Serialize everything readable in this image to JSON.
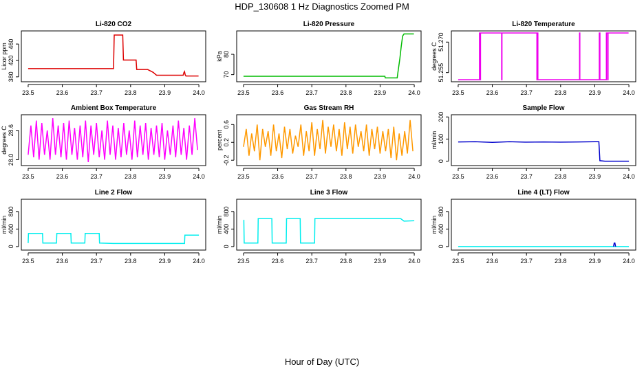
{
  "figure": {
    "title": "HDP_130608  1 Hz Diagnostics Zoomed PM",
    "xlabel": "Hour of Day (UTC)"
  },
  "chart_data": [
    {
      "id": "co2",
      "type": "line",
      "title": "Li-820 CO2",
      "ylabel": "Licor ppm",
      "color": "#dd0000",
      "xlim": [
        23.48,
        24.02
      ],
      "ylim": [
        368,
        492
      ],
      "x_ticks": [
        23.5,
        23.6,
        23.7,
        23.8,
        23.9,
        24.0
      ],
      "x_tick_labels": [
        "23.5",
        "23.6",
        "23.7",
        "23.8",
        "23.9",
        "24.0"
      ],
      "y_ticks": [
        380,
        420,
        460
      ],
      "y_tick_labels": [
        "380",
        "420",
        "460"
      ],
      "series": [
        {
          "x": [
            23.5,
            23.75,
            23.752,
            23.777,
            23.779,
            23.816,
            23.818,
            23.85,
            23.852,
            23.866,
            23.876,
            23.878,
            23.954,
            23.956,
            23.958,
            23.96,
            23.962,
            23.999
          ],
          "y": [
            400,
            400,
            482,
            482,
            421,
            421,
            398,
            398,
            397,
            391,
            384,
            384,
            384,
            390,
            393,
            385,
            382,
            382
          ]
        }
      ]
    },
    {
      "id": "pressure",
      "type": "line",
      "title": "Li-820 Pressure",
      "ylabel": "kPa",
      "color": "#00bb00",
      "xlim": [
        23.48,
        24.02
      ],
      "ylim": [
        66.5,
        91.5
      ],
      "x_ticks": [
        23.5,
        23.6,
        23.7,
        23.8,
        23.9,
        24.0
      ],
      "x_tick_labels": [
        "23.5",
        "23.6",
        "23.7",
        "23.8",
        "23.9",
        "24.0"
      ],
      "y_ticks": [
        70,
        80
      ],
      "y_tick_labels": [
        "70",
        "80"
      ],
      "series": [
        {
          "x": [
            23.5,
            23.914,
            23.915,
            23.95,
            23.952,
            23.958,
            23.962,
            23.966,
            23.97,
            23.999
          ],
          "y": [
            69.2,
            69.2,
            68.4,
            68.4,
            71,
            78,
            84,
            89,
            90,
            90
          ]
        }
      ]
    },
    {
      "id": "licor_temp",
      "type": "line",
      "title": "Li-820 Temperature",
      "ylabel": "degrees C",
      "color": "#ee00ee",
      "xlim": [
        23.48,
        24.02
      ],
      "ylim": [
        51.2505,
        51.2755
      ],
      "x_ticks": [
        23.5,
        23.6,
        23.7,
        23.8,
        23.9,
        24.0
      ],
      "x_tick_labels": [
        "23.5",
        "23.6",
        "23.7",
        "23.8",
        "23.9",
        "24.0"
      ],
      "y_ticks": [
        51.255,
        51.27
      ],
      "y_tick_labels": [
        "51.255",
        "51.270"
      ],
      "series": [
        {
          "x": [
            23.5,
            23.5625,
            23.5625,
            23.5635,
            23.5635,
            23.5655,
            23.5655,
            23.6273,
            23.6273,
            23.6283,
            23.6283,
            23.7305,
            23.7305,
            23.7315,
            23.7315,
            23.7335,
            23.7335,
            23.8553,
            23.8553,
            23.8563,
            23.8563,
            23.9133,
            23.9133,
            23.9153,
            23.9153,
            23.9339,
            23.9339,
            23.9375,
            23.9375,
            23.939,
            23.939,
            23.999
          ],
          "y": [
            51.2515,
            51.2515,
            51.2745,
            51.2745,
            51.2515,
            51.2515,
            51.2745,
            51.2745,
            51.2515,
            51.2515,
            51.2745,
            51.2745,
            51.2515,
            51.2515,
            51.2745,
            51.2745,
            51.2515,
            51.2515,
            51.2745,
            51.2745,
            51.2515,
            51.2515,
            51.2745,
            51.2745,
            51.2515,
            51.2515,
            51.2745,
            51.2745,
            51.2515,
            51.2515,
            51.2745,
            51.2745
          ]
        }
      ]
    },
    {
      "id": "box_temp",
      "type": "line",
      "title": "Ambient Box Temperature",
      "ylabel": "degrees C",
      "color": "#ff00ff",
      "xlim": [
        23.48,
        24.02
      ],
      "ylim": [
        27.88,
        28.92
      ],
      "x_ticks": [
        23.5,
        23.6,
        23.7,
        23.8,
        23.9,
        24.0
      ],
      "x_tick_labels": [
        "23.5",
        "23.6",
        "23.7",
        "23.8",
        "23.9",
        "24.0"
      ],
      "y_ticks": [
        28.0,
        28.6
      ],
      "y_tick_labels": [
        "28.0",
        "28.6"
      ],
      "series": [
        {
          "x": [
            23.5,
            23.508,
            23.516,
            23.524,
            23.532,
            23.54,
            23.548,
            23.556,
            23.564,
            23.572,
            23.58,
            23.588,
            23.596,
            23.604,
            23.612,
            23.62,
            23.628,
            23.636,
            23.644,
            23.652,
            23.66,
            23.668,
            23.676,
            23.684,
            23.692,
            23.7,
            23.708,
            23.716,
            23.724,
            23.732,
            23.74,
            23.748,
            23.756,
            23.764,
            23.772,
            23.78,
            23.788,
            23.796,
            23.804,
            23.812,
            23.82,
            23.828,
            23.836,
            23.844,
            23.852,
            23.86,
            23.868,
            23.876,
            23.884,
            23.892,
            23.9,
            23.908,
            23.916,
            23.924,
            23.932,
            23.94,
            23.948,
            23.956,
            23.964,
            23.972,
            23.98,
            23.988,
            23.996
          ],
          "y": [
            28.1,
            28.7,
            28.05,
            28.8,
            28.0,
            28.75,
            28.1,
            28.6,
            28.0,
            28.85,
            28.1,
            28.7,
            28.05,
            28.75,
            28.0,
            28.8,
            28.1,
            28.65,
            28.0,
            28.7,
            28.05,
            28.8,
            27.95,
            28.7,
            28.1,
            28.75,
            28.05,
            28.6,
            28.0,
            28.8,
            28.1,
            28.7,
            28.0,
            28.65,
            28.05,
            28.75,
            28.1,
            28.6,
            28.0,
            28.8,
            28.05,
            28.7,
            28.1,
            28.75,
            28.0,
            28.65,
            28.1,
            28.7,
            28.05,
            28.75,
            28.0,
            28.6,
            28.1,
            28.7,
            28.05,
            28.8,
            28.1,
            28.65,
            28.0,
            28.7,
            28.1,
            28.85,
            28.2
          ]
        }
      ]
    },
    {
      "id": "rh",
      "type": "line",
      "title": "Gas Stream RH",
      "ylabel": "percent",
      "color": "#ff9900",
      "xlim": [
        23.48,
        24.02
      ],
      "ylim": [
        -0.32,
        0.82
      ],
      "x_ticks": [
        23.5,
        23.6,
        23.7,
        23.8,
        23.9,
        24.0
      ],
      "x_tick_labels": [
        "23.5",
        "23.6",
        "23.7",
        "23.8",
        "23.9",
        "24.0"
      ],
      "y_ticks": [
        -0.2,
        0.2,
        0.6
      ],
      "y_tick_labels": [
        "-0.2",
        "0.2",
        "0.6"
      ],
      "series": [
        {
          "x": [
            23.5,
            23.508,
            23.516,
            23.524,
            23.532,
            23.54,
            23.548,
            23.556,
            23.564,
            23.572,
            23.58,
            23.588,
            23.596,
            23.604,
            23.612,
            23.62,
            23.628,
            23.636,
            23.644,
            23.652,
            23.66,
            23.668,
            23.676,
            23.684,
            23.692,
            23.7,
            23.708,
            23.716,
            23.724,
            23.732,
            23.74,
            23.748,
            23.756,
            23.764,
            23.772,
            23.78,
            23.788,
            23.796,
            23.804,
            23.812,
            23.82,
            23.828,
            23.836,
            23.844,
            23.852,
            23.86,
            23.868,
            23.876,
            23.884,
            23.892,
            23.9,
            23.908,
            23.916,
            23.924,
            23.932,
            23.94,
            23.948,
            23.956,
            23.964,
            23.972,
            23.98,
            23.988,
            23.996
          ],
          "y": [
            0.1,
            0.5,
            -0.1,
            0.4,
            0.0,
            0.6,
            -0.2,
            0.5,
            0.1,
            0.45,
            -0.1,
            0.6,
            0.0,
            0.4,
            -0.15,
            0.55,
            0.05,
            0.5,
            -0.05,
            0.35,
            0.1,
            0.6,
            -0.1,
            0.45,
            0.0,
            0.65,
            -0.1,
            0.5,
            0.05,
            0.7,
            -0.05,
            0.55,
            0.1,
            0.6,
            0.0,
            0.5,
            -0.1,
            0.65,
            0.05,
            0.55,
            -0.05,
            0.6,
            0.1,
            0.45,
            0.0,
            0.6,
            -0.1,
            0.5,
            0.05,
            0.55,
            -0.05,
            0.45,
            0.0,
            0.5,
            -0.15,
            0.55,
            -0.2,
            0.4,
            -0.1,
            0.45,
            -0.05,
            0.7,
            0.0
          ]
        }
      ]
    },
    {
      "id": "sample_flow",
      "type": "line",
      "title": "Sample Flow",
      "ylabel": "ml/min",
      "color": "#0000cc",
      "xlim": [
        23.48,
        24.02
      ],
      "ylim": [
        -20,
        210
      ],
      "x_ticks": [
        23.5,
        23.6,
        23.7,
        23.8,
        23.9,
        24.0
      ],
      "x_tick_labels": [
        "23.5",
        "23.6",
        "23.7",
        "23.8",
        "23.9",
        "24.0"
      ],
      "y_ticks": [
        0,
        100,
        200
      ],
      "y_tick_labels": [
        "0",
        "100",
        "200"
      ],
      "series": [
        {
          "x": [
            23.5,
            23.55,
            23.6,
            23.65,
            23.7,
            23.75,
            23.8,
            23.85,
            23.9,
            23.912,
            23.915,
            23.93,
            24.0
          ],
          "y": [
            87,
            88,
            85,
            88,
            86,
            87,
            86,
            87,
            88,
            88,
            2,
            0,
            0
          ]
        }
      ]
    },
    {
      "id": "line2_flow",
      "type": "line",
      "title": "Line 2 Flow",
      "ylabel": "ml/min",
      "color": "#00eeee",
      "xlim": [
        23.48,
        24.02
      ],
      "ylim": [
        -80,
        1080
      ],
      "x_ticks": [
        23.5,
        23.6,
        23.7,
        23.8,
        23.9,
        24.0
      ],
      "x_tick_labels": [
        "23.5",
        "23.6",
        "23.7",
        "23.8",
        "23.9",
        "24.0"
      ],
      "y_ticks": [
        0,
        400,
        800
      ],
      "y_tick_labels": [
        "0",
        "400",
        "800"
      ],
      "series": [
        {
          "x": [
            23.5,
            23.501,
            23.542,
            23.543,
            23.583,
            23.584,
            23.625,
            23.626,
            23.666,
            23.667,
            23.708,
            23.709,
            23.75,
            23.958,
            23.959,
            24.0
          ],
          "y": [
            80,
            300,
            300,
            80,
            80,
            300,
            300,
            80,
            80,
            300,
            300,
            80,
            70,
            70,
            260,
            260
          ]
        }
      ]
    },
    {
      "id": "line3_flow",
      "type": "line",
      "title": "Line 3 Flow",
      "ylabel": "ml/min",
      "color": "#00eeee",
      "xlim": [
        23.48,
        24.02
      ],
      "ylim": [
        -80,
        1080
      ],
      "x_ticks": [
        23.5,
        23.6,
        23.7,
        23.8,
        23.9,
        24.0
      ],
      "x_tick_labels": [
        "23.5",
        "23.6",
        "23.7",
        "23.8",
        "23.9",
        "24.0"
      ],
      "y_ticks": [
        0,
        400,
        800
      ],
      "y_tick_labels": [
        "0",
        "400",
        "800"
      ],
      "series": [
        {
          "x": [
            23.5,
            23.501,
            23.502,
            23.542,
            23.543,
            23.583,
            23.584,
            23.625,
            23.626,
            23.666,
            23.667,
            23.708,
            23.709,
            23.96,
            23.97,
            24.0
          ],
          "y": [
            600,
            600,
            80,
            80,
            640,
            640,
            80,
            80,
            640,
            640,
            80,
            80,
            640,
            640,
            580,
            590
          ]
        }
      ]
    },
    {
      "id": "line4_flow",
      "type": "line",
      "title": "Line 4 (LT) Flow",
      "ylabel": "ml/min",
      "color": "#00eeee",
      "xlim": [
        23.48,
        24.02
      ],
      "ylim": [
        -80,
        1080
      ],
      "x_ticks": [
        23.5,
        23.6,
        23.7,
        23.8,
        23.9,
        24.0
      ],
      "x_tick_labels": [
        "23.5",
        "23.6",
        "23.7",
        "23.8",
        "23.9",
        "24.0"
      ],
      "y_ticks": [
        0,
        400,
        800
      ],
      "y_tick_labels": [
        "0",
        "400",
        "800"
      ],
      "series": [
        {
          "x": [
            23.5,
            24.0
          ],
          "y": [
            0,
            0
          ],
          "color": "#00eeee"
        },
        {
          "x": [
            23.955,
            23.957,
            23.959,
            23.961
          ],
          "y": [
            0,
            80,
            80,
            0
          ],
          "color": "#0000cc"
        }
      ]
    }
  ]
}
